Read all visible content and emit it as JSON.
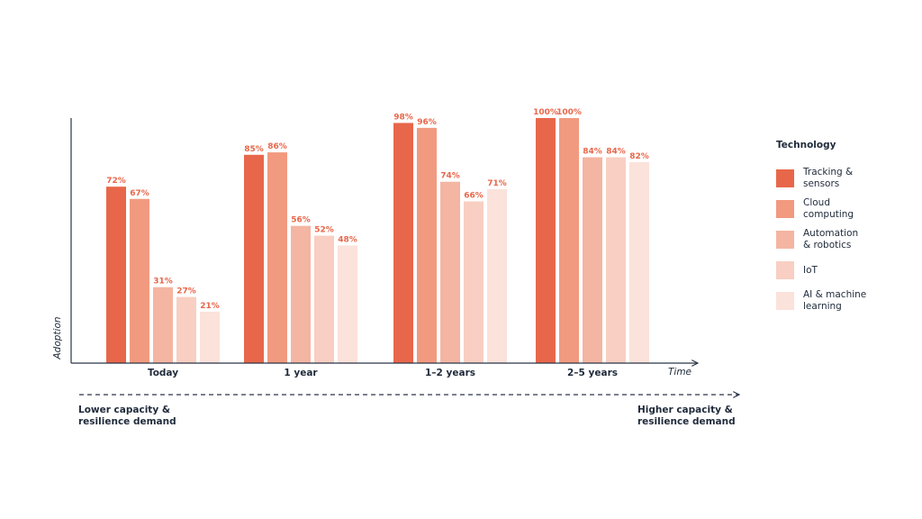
{
  "chart_data": {
    "type": "bar",
    "categories": [
      "Today",
      "1 year",
      "1–2 years",
      "2–5 years"
    ],
    "series": [
      {
        "name": "Tracking & sensors",
        "color": "#e8674a",
        "values": [
          72,
          85,
          98,
          100
        ]
      },
      {
        "name": "Cloud computing",
        "color": "#f19a80",
        "values": [
          67,
          86,
          96,
          100
        ]
      },
      {
        "name": "Automation & robotics",
        "color": "#f4b5a2",
        "values": [
          31,
          56,
          74,
          84
        ]
      },
      {
        "name": "IoT",
        "color": "#f8cfc2",
        "values": [
          27,
          52,
          66,
          84
        ]
      },
      {
        "name": "AI & machine learning",
        "color": "#fbe2da",
        "values": [
          21,
          48,
          71,
          82
        ]
      }
    ],
    "value_suffix": "%",
    "label_color": "#e8674a",
    "xlabel": "Time",
    "ylabel": "Adoption",
    "ylim": [
      0,
      100
    ],
    "legend_title": "Technology",
    "legend_placement": "right",
    "grid": false
  },
  "legend_labels": [
    "Tracking & sensors",
    "Cloud computing",
    "Automation & robotics",
    "IoT",
    "AI & machine learning"
  ],
  "demand": {
    "low": "Lower capacity & resilience demand",
    "high": "Higher capacity & resilience demand"
  },
  "axis_color": "#2b3447"
}
